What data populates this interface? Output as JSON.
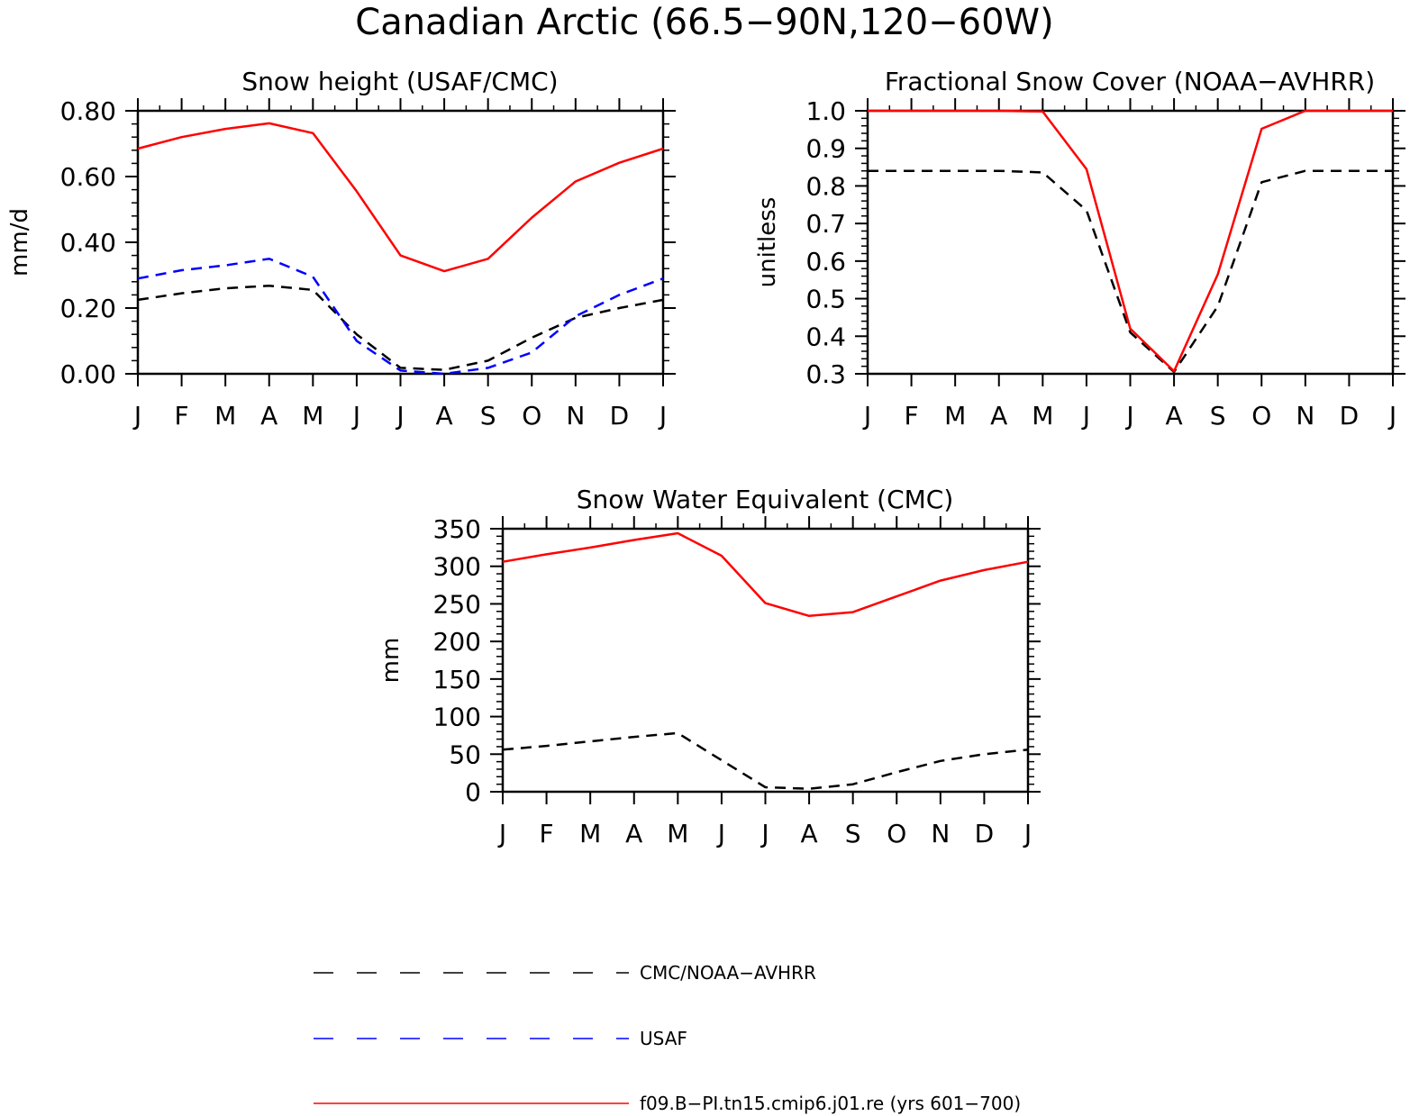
{
  "figure": {
    "title": "Canadian Arctic (66.5−90N,120−60W)"
  },
  "chart_data": [
    {
      "type": "line",
      "title": "Snow height (USAF/CMC)",
      "xlabel": "",
      "ylabel": "mm/d",
      "categories": [
        "J",
        "F",
        "M",
        "A",
        "M",
        "J",
        "J",
        "A",
        "S",
        "O",
        "N",
        "D",
        "J"
      ],
      "ylim": [
        0,
        0.8
      ],
      "yticks": [
        0,
        0.2,
        0.4,
        0.6,
        0.8
      ],
      "ytick_labels": [
        "0.00",
        "0.20",
        "0.40",
        "0.60",
        "0.80"
      ],
      "grid": false,
      "series": [
        {
          "name": "CMC/NOAA−AVHRR",
          "color": "#000000",
          "dash": true,
          "values": [
            0.225,
            0.245,
            0.26,
            0.268,
            0.255,
            0.12,
            0.018,
            0.012,
            0.04,
            0.11,
            0.17,
            0.2,
            0.225
          ]
        },
        {
          "name": "USAF",
          "color": "#0000ff",
          "dash": true,
          "values": [
            0.29,
            0.315,
            0.33,
            0.35,
            0.295,
            0.1,
            0.01,
            0.0,
            0.018,
            0.065,
            0.175,
            0.24,
            0.29
          ]
        },
        {
          "name": "f09.B−PI.tn15.cmip6.j01.re (yrs 601−700)",
          "color": "#ff0000",
          "dash": false,
          "values": [
            0.685,
            0.72,
            0.745,
            0.762,
            0.732,
            0.555,
            0.36,
            0.312,
            0.35,
            0.475,
            0.585,
            0.642,
            0.685
          ]
        }
      ]
    },
    {
      "type": "line",
      "title": "Fractional Snow Cover (NOAA−AVHRR)",
      "xlabel": "",
      "ylabel": "unitless",
      "categories": [
        "J",
        "F",
        "M",
        "A",
        "M",
        "J",
        "J",
        "A",
        "S",
        "O",
        "N",
        "D",
        "J"
      ],
      "ylim": [
        0.3,
        1.0
      ],
      "yticks": [
        0.3,
        0.4,
        0.5,
        0.6,
        0.7,
        0.8,
        0.9,
        1.0
      ],
      "ytick_labels": [
        "0.3",
        "0.4",
        "0.5",
        "0.6",
        "0.7",
        "0.8",
        "0.9",
        "1.0"
      ],
      "grid": false,
      "series": [
        {
          "name": "CMC/NOAA−AVHRR",
          "color": "#000000",
          "dash": true,
          "values": [
            0.84,
            0.84,
            0.84,
            0.84,
            0.836,
            0.735,
            0.41,
            0.305,
            0.48,
            0.81,
            0.84,
            0.84,
            0.84
          ]
        },
        {
          "name": "f09.B−PI.tn15.cmip6.j01.re (yrs 601−700)",
          "color": "#ff0000",
          "dash": false,
          "values": [
            1.0,
            1.0,
            1.0,
            1.0,
            0.998,
            0.845,
            0.42,
            0.307,
            0.565,
            0.952,
            1.0,
            1.0,
            1.0
          ]
        }
      ]
    },
    {
      "type": "line",
      "title": "Snow Water Equivalent (CMC)",
      "xlabel": "",
      "ylabel": "mm",
      "categories": [
        "J",
        "F",
        "M",
        "A",
        "M",
        "J",
        "J",
        "A",
        "S",
        "O",
        "N",
        "D",
        "J"
      ],
      "ylim": [
        0,
        350
      ],
      "yticks": [
        0,
        50,
        100,
        150,
        200,
        250,
        300,
        350
      ],
      "ytick_labels": [
        "0",
        "50",
        "100",
        "150",
        "200",
        "250",
        "300",
        "350"
      ],
      "grid": false,
      "series": [
        {
          "name": "CMC/NOAA−AVHRR",
          "color": "#000000",
          "dash": true,
          "values": [
            56,
            61,
            67,
            73,
            78,
            42,
            6,
            4,
            10,
            26,
            41,
            50,
            56
          ]
        },
        {
          "name": "f09.B−PI.tn15.cmip6.j01.re (yrs 601−700)",
          "color": "#ff0000",
          "dash": false,
          "values": [
            306,
            316,
            325,
            335,
            344,
            314,
            251,
            234,
            239,
            260,
            281,
            295,
            306
          ]
        }
      ]
    }
  ],
  "legend": {
    "placement": "bottom",
    "entries": [
      {
        "label": "CMC/NOAA−AVHRR",
        "color": "#000000",
        "dash": true
      },
      {
        "label": "USAF",
        "color": "#0000ff",
        "dash": true
      },
      {
        "label": "f09.B−PI.tn15.cmip6.j01.re (yrs 601−700)",
        "color": "#ff0000",
        "dash": false
      }
    ]
  }
}
